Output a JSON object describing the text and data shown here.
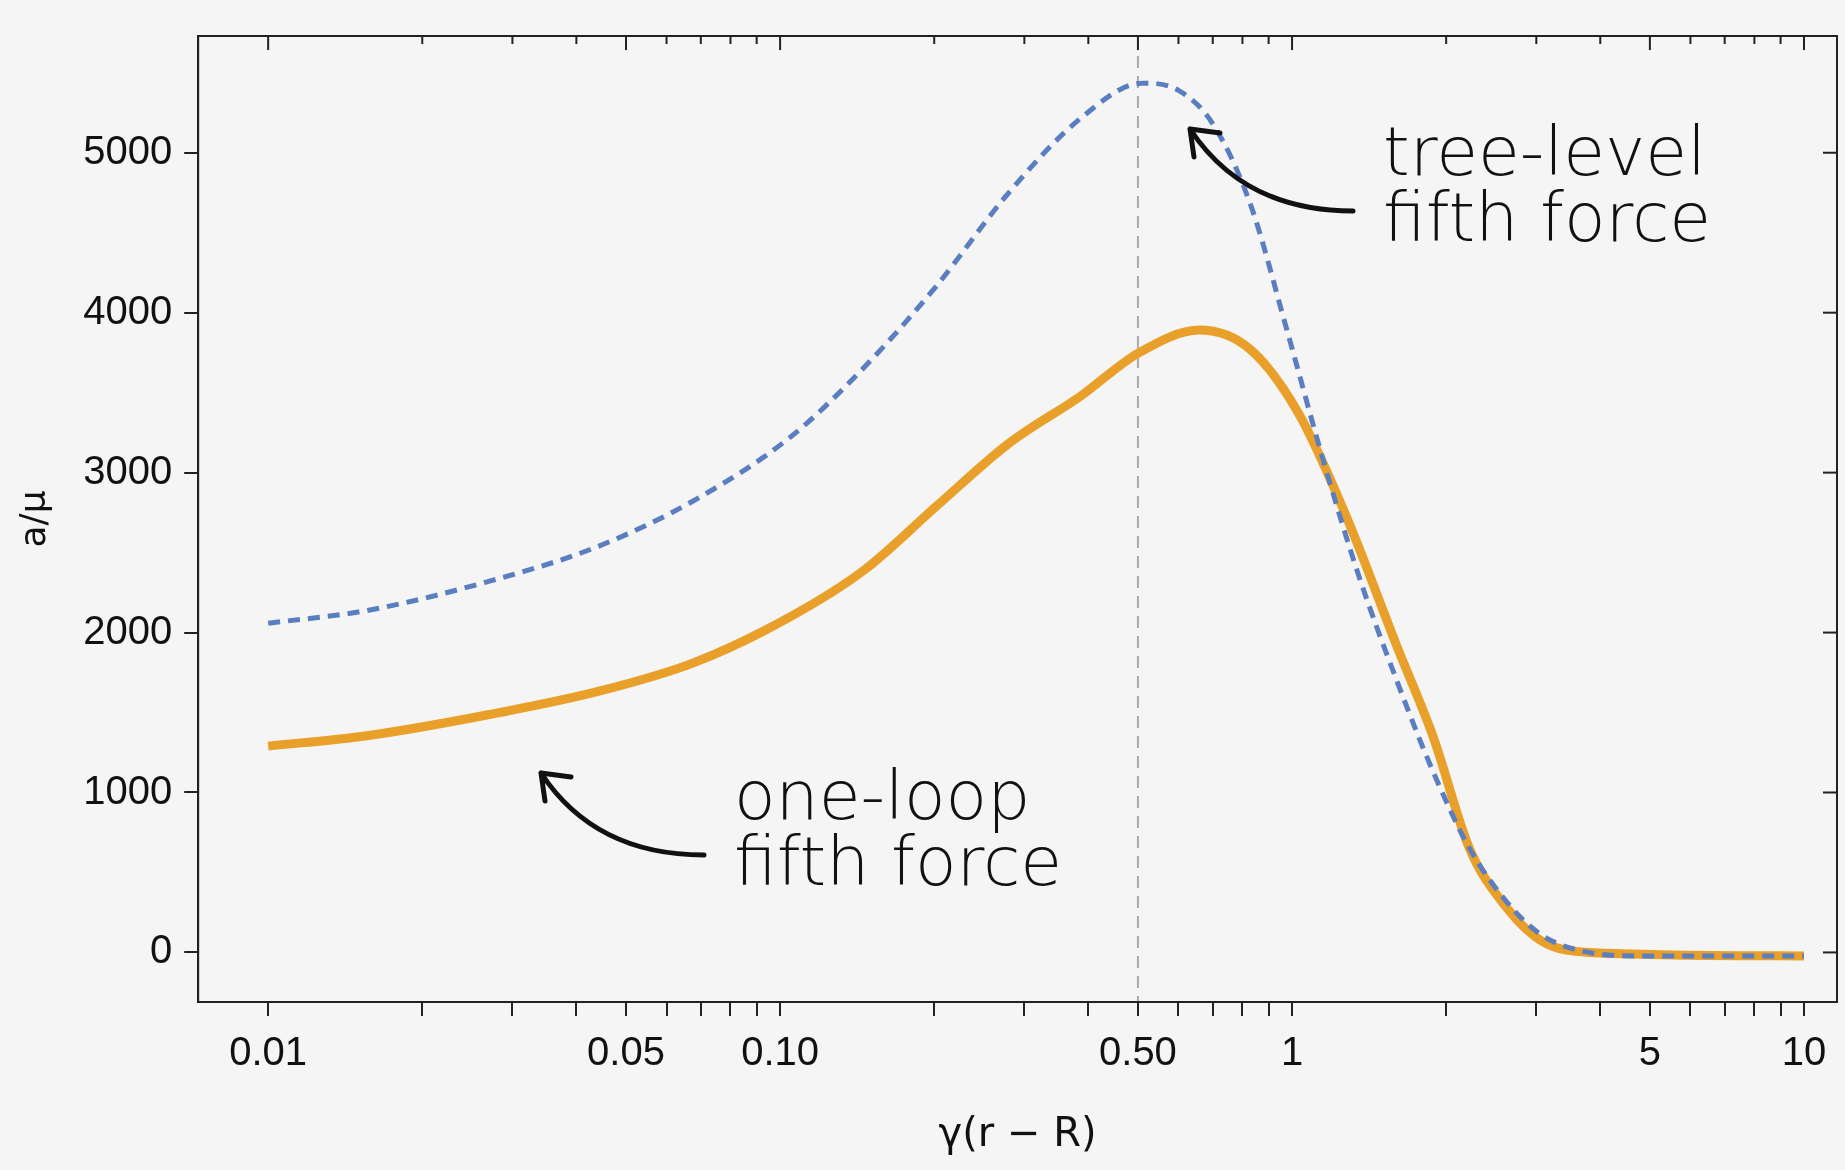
{
  "chart_data": {
    "type": "line",
    "xlabel": "γ(r − R)",
    "ylabel": "a/μ",
    "log": "x",
    "grid": false,
    "legend": false,
    "marker": "none",
    "xlim": [
      0.0073,
      11.6
    ],
    "ylim": [
      -310,
      5730
    ],
    "xticks": [
      0.01,
      {
        "value": 0.02,
        "label": null
      },
      {
        "value": 0.03,
        "label": null
      },
      {
        "value": 0.04,
        "label": null
      },
      0.05,
      {
        "value": 0.06,
        "label": null
      },
      {
        "value": 0.07,
        "label": null
      },
      {
        "value": 0.08,
        "label": null
      },
      {
        "value": 0.09,
        "label": null
      },
      {
        "value": 0.1,
        "label": "0.10"
      },
      {
        "value": 0.2,
        "label": null
      },
      {
        "value": 0.3,
        "label": null
      },
      {
        "value": 0.4,
        "label": null
      },
      {
        "value": 0.5,
        "label": "0.50"
      },
      {
        "value": 0.6,
        "label": null
      },
      {
        "value": 0.7,
        "label": null
      },
      {
        "value": 0.8,
        "label": null
      },
      {
        "value": 0.9,
        "label": null
      },
      1,
      {
        "value": 2,
        "label": null
      },
      {
        "value": 3,
        "label": null
      },
      {
        "value": 4,
        "label": null
      },
      5,
      {
        "value": 6,
        "label": null
      },
      {
        "value": 7,
        "label": null
      },
      {
        "value": 8,
        "label": null
      },
      {
        "value": 9,
        "label": null
      },
      10
    ],
    "yticks": [
      0,
      1000,
      2000,
      3000,
      4000,
      5000
    ],
    "series": [
      {
        "color": "#5a7ebf",
        "line_style": "dashed",
        "x": [
          0.01,
          0.0156,
          0.0269,
          0.0439,
          0.0679,
          0.105,
          0.146,
          0.202,
          0.279,
          0.387,
          0.51,
          0.6,
          0.7,
          0.83,
          0.98,
          1.15,
          1.35,
          1.6,
          1.89,
          2.22,
          2.61,
          3.07,
          3.8,
          4.8,
          10
        ],
        "values": [
          2058,
          2138,
          2319,
          2536,
          2826,
          3225,
          3659,
          4167,
          4746,
          5217,
          5435,
          5390,
          5181,
          4674,
          3877,
          3080,
          2355,
          1703,
          1123,
          652,
          326,
          109,
          0,
          -22,
          -22
        ]
      },
      {
        "color": "#e8a02a",
        "line_style": "solid",
        "x": [
          0.01,
          0.0156,
          0.0269,
          0.0439,
          0.0679,
          0.105,
          0.146,
          0.202,
          0.279,
          0.387,
          0.5,
          0.66,
          0.83,
          1.03,
          1.28,
          1.6,
          1.89,
          2.22,
          2.61,
          3.07,
          3.8,
          10
        ],
        "values": [
          1290,
          1355,
          1486,
          1630,
          1812,
          2101,
          2391,
          2790,
          3180,
          3480,
          3746,
          3891,
          3768,
          3370,
          2717,
          1920,
          1341,
          652,
          290,
          72,
          0,
          -22
        ]
      }
    ],
    "ref_lines": [
      {
        "axis": "x",
        "value": 0.5,
        "color": "#aaaaaa",
        "line_style": "dashed"
      }
    ],
    "annotations": [
      "tree-level\nfifth force",
      "one-loop\nfifth force"
    ]
  }
}
